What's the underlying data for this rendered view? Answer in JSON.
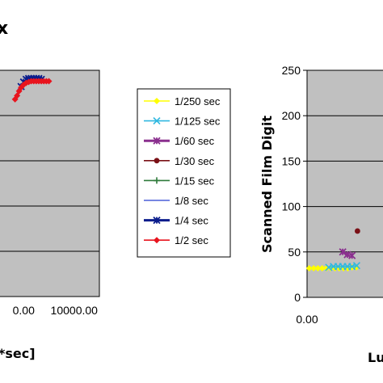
{
  "chart_data": [
    {
      "type": "scatter",
      "title": "",
      "xlabel": "*sec]",
      "ylabel": "",
      "x_tick_labels": [
        {
          "value": 0,
          "label": "0.00"
        },
        {
          "value": 10000,
          "label": "10000.00"
        }
      ],
      "y_gridlines": [
        0,
        50,
        100,
        150,
        200,
        250
      ],
      "xlim": [
        -5000,
        15000
      ],
      "ylim": [
        0,
        250
      ],
      "grid": true,
      "series": [
        {
          "name": "1/4 sec",
          "color": "#0a1c8c",
          "marker": "x-star",
          "x": [
            -500,
            0,
            500,
            1000,
            1500,
            2000,
            2500,
            3000,
            3500
          ],
          "y": [
            232,
            237,
            240,
            241,
            241,
            241,
            241,
            241,
            240
          ]
        },
        {
          "name": "1/2 sec",
          "color": "#e8141e",
          "marker": "diamond",
          "x": [
            -1700,
            -1300,
            -900,
            -500,
            0,
            500,
            1000,
            1500,
            2000,
            2500,
            3000,
            3500,
            4000,
            4500,
            5000
          ],
          "y": [
            218,
            222,
            227,
            231,
            234,
            236,
            237,
            238,
            238,
            238,
            238,
            238,
            238,
            238,
            238
          ]
        }
      ]
    },
    {
      "type": "scatter",
      "title": "",
      "xlabel": "Lu",
      "ylabel": "Scanned Film Digit",
      "x_tick_labels": [
        {
          "value": 0,
          "label": "0.00"
        }
      ],
      "y_ticks": [
        0,
        50,
        100,
        150,
        200,
        250
      ],
      "xlim": [
        0,
        10
      ],
      "ylim": [
        0,
        250
      ],
      "grid": true,
      "series": [
        {
          "name": "1/250 sec",
          "color": "#ffff00",
          "marker": "diamond",
          "x": [
            0.28,
            0.85,
            1.4,
            1.95,
            2.5,
            3.05,
            3.6,
            4.15,
            4.7,
            5.25,
            5.8,
            6.35
          ],
          "y": [
            32,
            32,
            32,
            32,
            32,
            32,
            32,
            32,
            32,
            32,
            33,
            33
          ]
        },
        {
          "name": "1/125 sec",
          "color": "#30b8e0",
          "marker": "x",
          "x": [
            2.8,
            3.4,
            4.0,
            4.6,
            5.2,
            5.8,
            6.4
          ],
          "y": [
            33,
            34,
            34,
            34,
            34,
            34,
            35
          ]
        },
        {
          "name": "1/60 sec",
          "color": "#8a2f8e",
          "marker": "x-star",
          "x": [
            4.6,
            5.2,
            5.8
          ],
          "y": [
            50,
            47,
            46
          ]
        },
        {
          "name": "1/30 sec",
          "color": "#7a1016",
          "marker": "circle",
          "x": [
            6.5
          ],
          "y": [
            73
          ]
        },
        {
          "name": "1/15 sec",
          "color": "#2e7a3a",
          "marker": "plus",
          "x": [],
          "y": []
        },
        {
          "name": "1/8 sec",
          "color": "#4a5ed8",
          "marker": "dash",
          "x": [],
          "y": []
        },
        {
          "name": "1/4 sec",
          "color": "#0a1c8c",
          "marker": "x-star",
          "x": [],
          "y": []
        },
        {
          "name": "1/2 sec",
          "color": "#e8141e",
          "marker": "diamond",
          "x": [],
          "y": []
        }
      ]
    }
  ],
  "header_glyph": "x"
}
